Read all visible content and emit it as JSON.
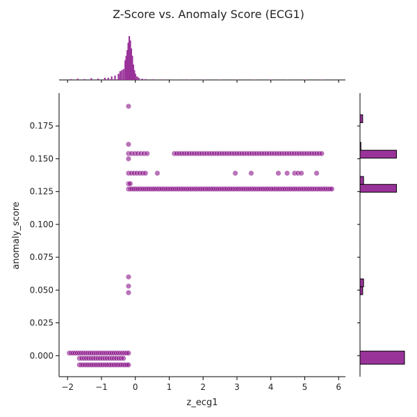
{
  "chart_data": {
    "type": "scatter",
    "title": "Z-Score vs. Anomaly Score (ECG1)",
    "xlabel": "z_ecg1",
    "ylabel": "anomaly_score",
    "xlim": [
      -2.25,
      6.2
    ],
    "ylim": [
      -0.016,
      0.2
    ],
    "x_ticks": [
      -2,
      -1,
      0,
      1,
      2,
      3,
      4,
      5,
      6
    ],
    "x_tick_labels": [
      "−2",
      "−1",
      "0",
      "1",
      "2",
      "3",
      "4",
      "5",
      "6"
    ],
    "y_ticks": [
      0.0,
      0.025,
      0.05,
      0.075,
      0.1,
      0.125,
      0.15,
      0.175
    ],
    "y_tick_labels": [
      "0.000",
      "0.025",
      "0.050",
      "0.075",
      "0.100",
      "0.125",
      "0.150",
      "0.175"
    ],
    "grid": false,
    "marker_color": "#800080",
    "bar_color": "#993399",
    "scatter_clusters": [
      {
        "y": 0.19,
        "x_min": -0.2,
        "x_max": -0.2,
        "n": 1
      },
      {
        "y": 0.161,
        "x_min": -0.2,
        "x_max": -0.2,
        "n": 1
      },
      {
        "y": 0.154,
        "x_min": -0.2,
        "x_max": 0.35,
        "n": 7
      },
      {
        "y": 0.154,
        "x_min": 1.15,
        "x_max": 5.5,
        "n": 60
      },
      {
        "y": 0.15,
        "x_min": -0.2,
        "x_max": -0.2,
        "n": 1
      },
      {
        "y": 0.139,
        "x_min": -0.2,
        "x_max": 0.3,
        "n": 7
      },
      {
        "y": 0.139,
        "x_min": 0.65,
        "x_max": 0.65,
        "n": 1
      },
      {
        "y": 0.139,
        "x_min": 2.95,
        "x_max": 2.95,
        "n": 1
      },
      {
        "y": 0.139,
        "x_min": 3.42,
        "x_max": 3.42,
        "n": 1
      },
      {
        "y": 0.139,
        "x_min": 4.22,
        "x_max": 4.22,
        "n": 1
      },
      {
        "y": 0.139,
        "x_min": 4.48,
        "x_max": 4.48,
        "n": 1
      },
      {
        "y": 0.139,
        "x_min": 4.7,
        "x_max": 4.9,
        "n": 3
      },
      {
        "y": 0.139,
        "x_min": 5.35,
        "x_max": 5.35,
        "n": 1
      },
      {
        "y": 0.131,
        "x_min": -0.2,
        "x_max": -0.15,
        "n": 2
      },
      {
        "y": 0.127,
        "x_min": -0.2,
        "x_max": 5.8,
        "n": 110
      },
      {
        "y": 0.06,
        "x_min": -0.2,
        "x_max": -0.2,
        "n": 1
      },
      {
        "y": 0.053,
        "x_min": -0.2,
        "x_max": -0.2,
        "n": 1
      },
      {
        "y": 0.048,
        "x_min": -0.2,
        "x_max": -0.2,
        "n": 1
      },
      {
        "y": 0.002,
        "x_min": -1.95,
        "x_max": -0.2,
        "n": 30
      },
      {
        "y": -0.002,
        "x_min": -1.65,
        "x_max": -0.35,
        "n": 20
      },
      {
        "y": -0.007,
        "x_min": -1.65,
        "x_max": -0.2,
        "n": 28
      }
    ],
    "top_hist": {
      "x": [
        -1.9,
        -1.7,
        -1.5,
        -1.3,
        -1.1,
        -0.9,
        -0.8,
        -0.7,
        -0.6,
        -0.5,
        -0.45,
        -0.4,
        -0.35,
        -0.3,
        -0.27,
        -0.24,
        -0.21,
        -0.18,
        -0.15,
        -0.12,
        -0.09,
        -0.06,
        -0.03,
        0.0,
        0.05,
        0.1,
        0.2,
        0.3,
        0.5,
        0.8,
        1.2,
        1.6,
        2.0,
        2.5,
        3.0,
        3.5,
        4.0,
        4.5,
        5.0,
        5.5
      ],
      "counts": [
        0.02,
        0.03,
        0.02,
        0.04,
        0.03,
        0.05,
        0.05,
        0.08,
        0.1,
        0.14,
        0.2,
        0.22,
        0.25,
        0.45,
        0.55,
        0.68,
        0.85,
        1.0,
        0.9,
        0.72,
        0.55,
        0.35,
        0.22,
        0.14,
        0.08,
        0.05,
        0.03,
        0.02,
        0.015,
        0.012,
        0.01,
        0.01,
        0.01,
        0.01,
        0.01,
        0.01,
        0.01,
        0.01,
        0.01,
        0.01
      ]
    },
    "right_hist": {
      "bins": [
        {
          "y_from": -0.0065,
          "y_to": 0.0035,
          "count": 1.0
        },
        {
          "y_from": 0.0255,
          "y_to": 0.0265,
          "count": 0.0
        },
        {
          "y_from": 0.0465,
          "y_to": 0.0525,
          "count": 0.06
        },
        {
          "y_from": 0.0525,
          "y_to": 0.0585,
          "count": 0.08
        },
        {
          "y_from": 0.1245,
          "y_to": 0.1305,
          "count": 0.82
        },
        {
          "y_from": 0.1305,
          "y_to": 0.1365,
          "count": 0.08
        },
        {
          "y_from": 0.1505,
          "y_to": 0.1565,
          "count": 0.82
        },
        {
          "y_from": 0.1565,
          "y_to": 0.1625,
          "count": 0.02
        },
        {
          "y_from": 0.1775,
          "y_to": 0.1835,
          "count": 0.06
        }
      ]
    }
  }
}
